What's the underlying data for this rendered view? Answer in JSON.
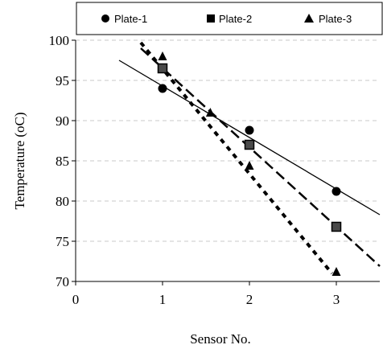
{
  "chart_data": {
    "type": "scatter",
    "title": "",
    "xlabel": "Sensor No.",
    "ylabel": "Temperature  (oC)",
    "xlim": [
      0,
      3.5
    ],
    "ylim": [
      70,
      100
    ],
    "x_ticks": [
      0,
      1,
      2,
      3
    ],
    "y_ticks": [
      70,
      75,
      80,
      85,
      90,
      95,
      100
    ],
    "grid": "horizontal-dashed",
    "legend_position": "top",
    "series": [
      {
        "name": "Plate-1",
        "marker": "circle",
        "x": [
          1,
          2,
          3
        ],
        "y": [
          94.0,
          88.8,
          81.2
        ],
        "trend": {
          "style": "solid",
          "x": [
            0.5,
            3.5
          ],
          "y": [
            97.5,
            78.3
          ]
        }
      },
      {
        "name": "Plate-2",
        "marker": "square",
        "x": [
          1,
          2,
          3
        ],
        "y": [
          96.5,
          87.0,
          76.8
        ],
        "trend": {
          "style": "dashed",
          "x": [
            0.75,
            3.5
          ],
          "y": [
            99.0,
            71.9
          ]
        }
      },
      {
        "name": "Plate-3",
        "marker": "triangle",
        "x": [
          1,
          1.55,
          2,
          3
        ],
        "y": [
          98.0,
          91.0,
          84.4,
          71.2
        ],
        "trend": {
          "style": "dotted",
          "x": [
            0.75,
            2.95
          ],
          "y": [
            99.7,
            71.0
          ]
        }
      }
    ]
  }
}
